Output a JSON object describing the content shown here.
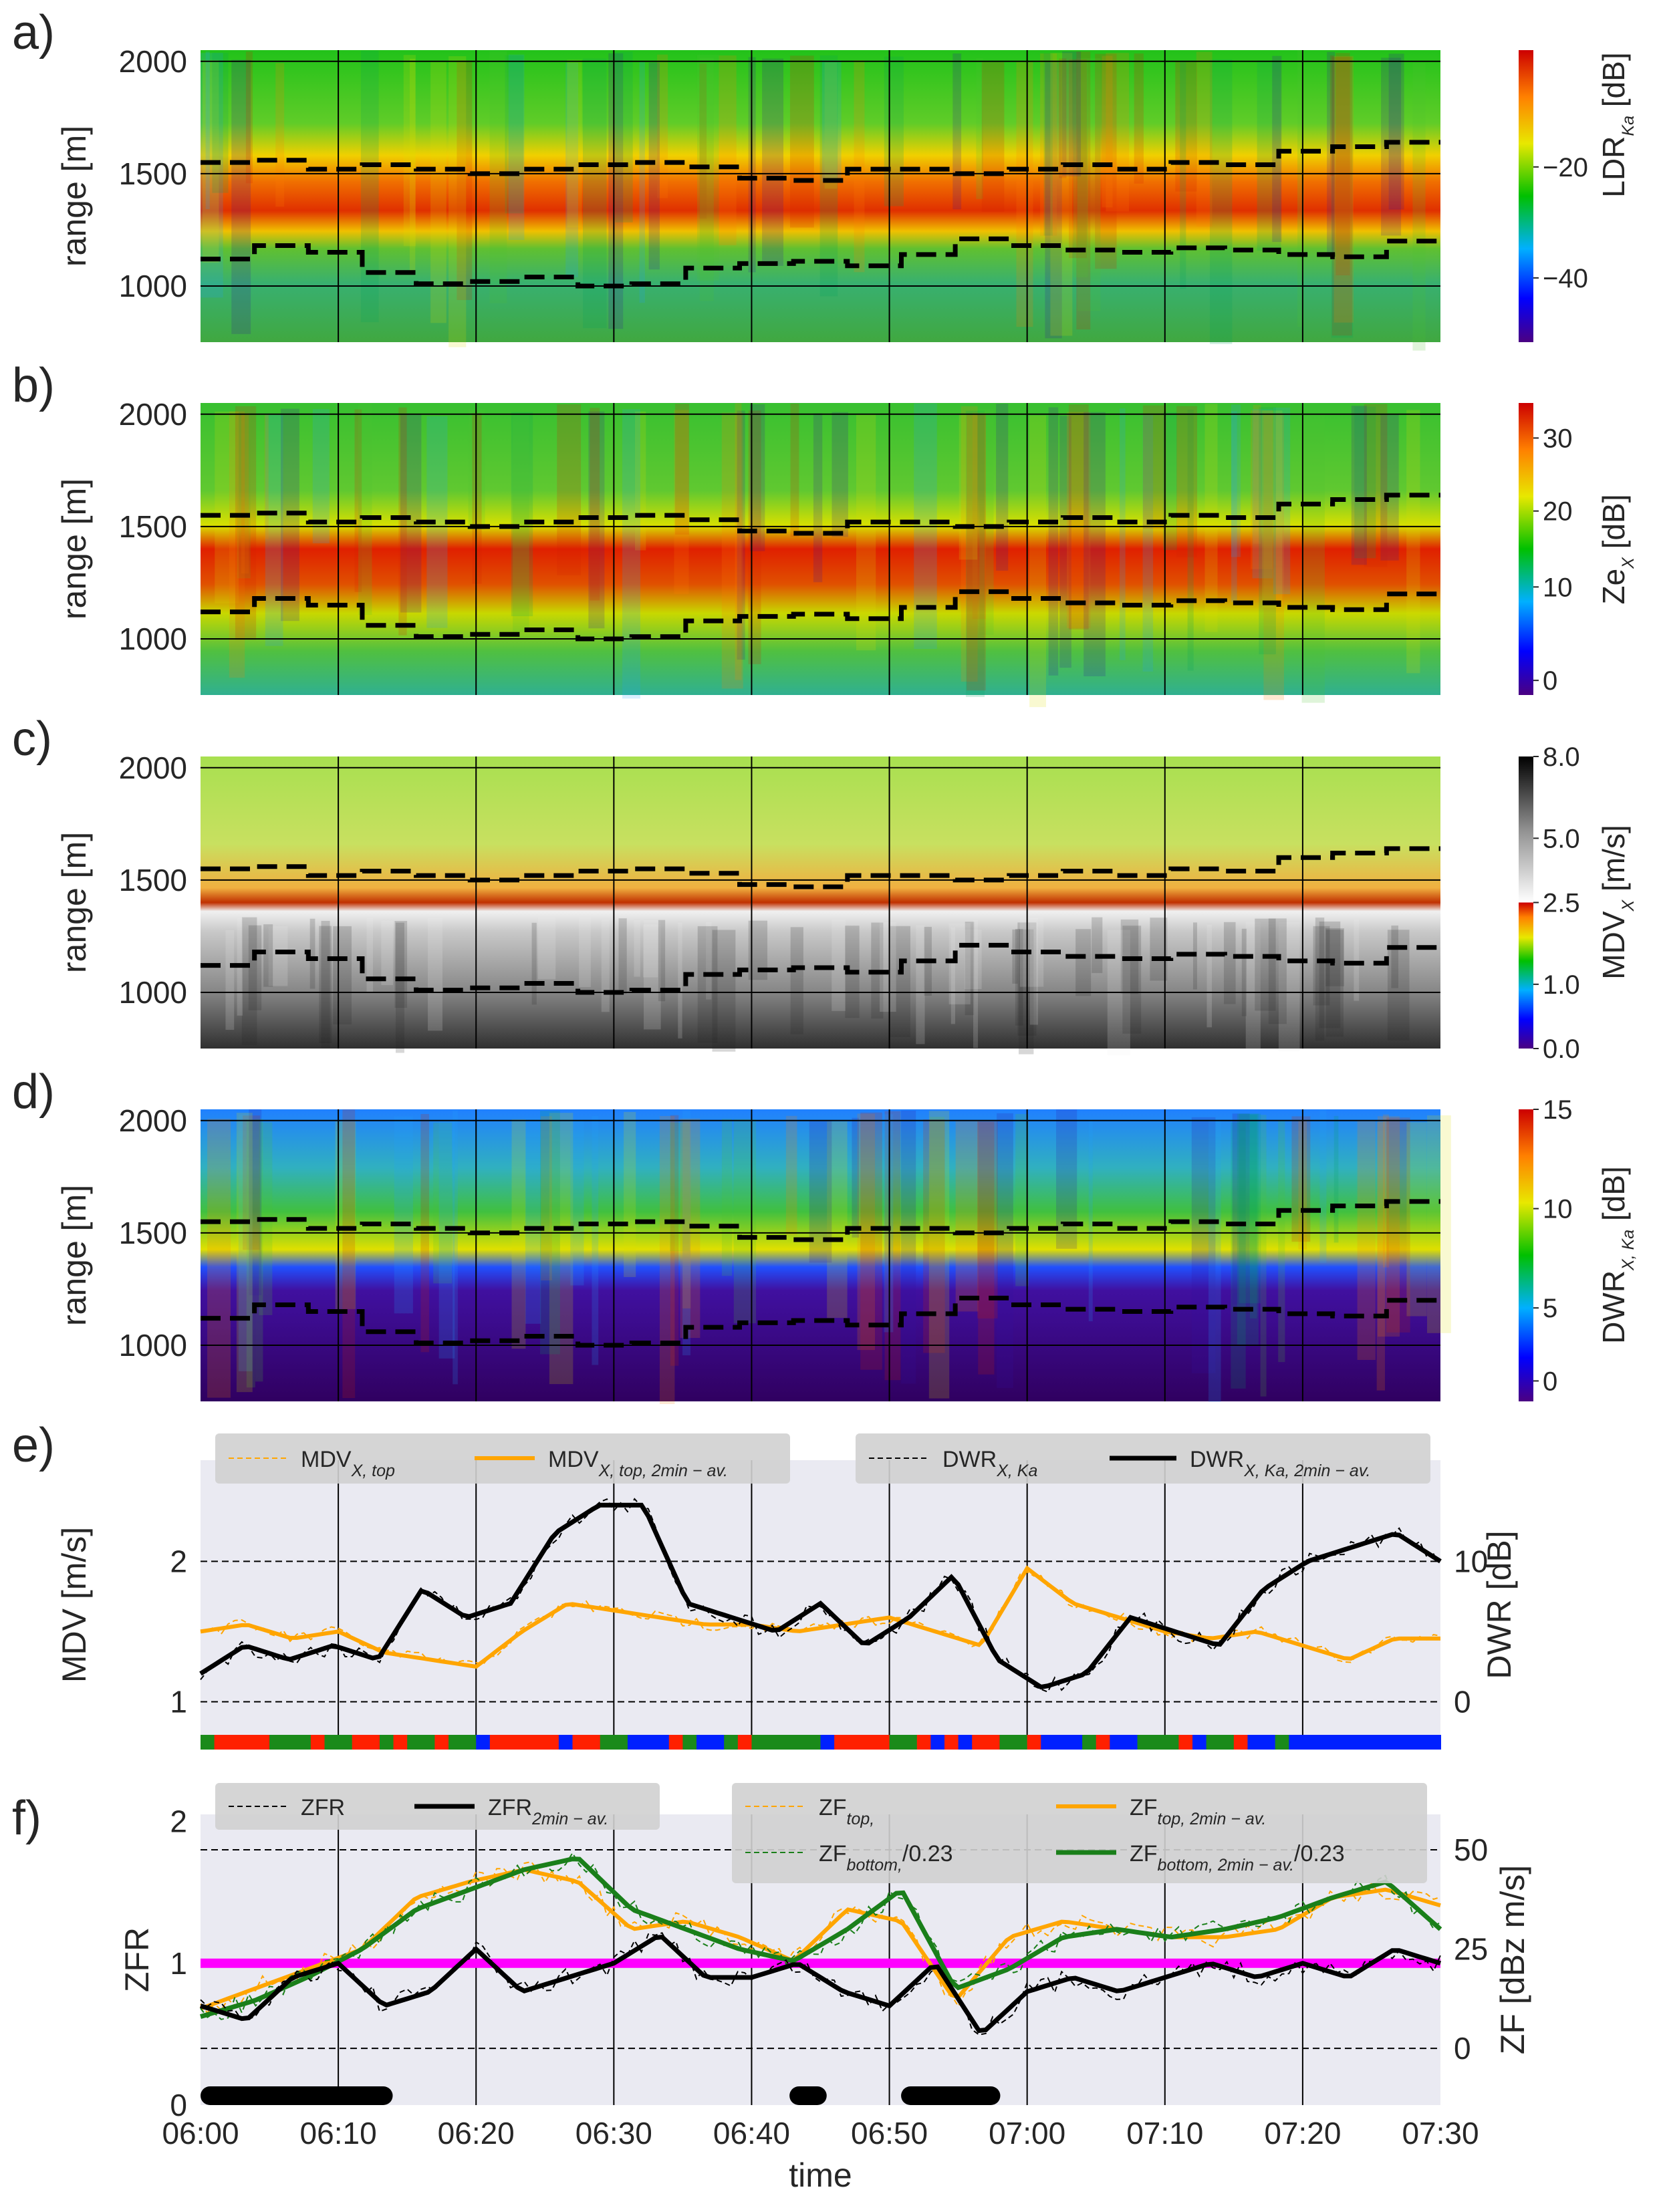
{
  "panels": {
    "a": {
      "label": "a)",
      "ylabel": "range [m]",
      "cbar_label": "LDR_Ka [dB]",
      "cbar_ticks": [
        "−20",
        "−40"
      ]
    },
    "b": {
      "label": "b)",
      "ylabel": "range [m]",
      "cbar_label": "Ze_X [dB]",
      "cbar_ticks": [
        "30",
        "20",
        "10",
        "0"
      ]
    },
    "c": {
      "label": "c)",
      "ylabel": "range [m]",
      "cbar_label": "MDV_X [m/s]",
      "cbar_ticks": [
        "8.0",
        "5.0",
        "2.5",
        "1.0",
        "0.0"
      ]
    },
    "d": {
      "label": "d)",
      "ylabel": "range [m]",
      "cbar_label": "DWR_X,Ka [dB]",
      "cbar_ticks": [
        "15",
        "10",
        "5",
        "0"
      ]
    },
    "e": {
      "label": "e)",
      "ylabel": "MDV [m/s]",
      "ylabel_right": "DWR [dB]"
    },
    "f": {
      "label": "f)",
      "ylabel": "ZFR",
      "ylabel_right": "ZF [dBz m/s]",
      "xlabel": "time"
    }
  },
  "range_ticks": [
    "2000",
    "1500",
    "1000"
  ],
  "e_left_ticks": [
    "2",
    "1"
  ],
  "e_right_ticks": [
    "10",
    "0"
  ],
  "f_left_ticks": [
    "2",
    "1.5",
    "1",
    "0.5",
    "0"
  ],
  "f_left_tick_labels": [
    "2",
    "1",
    "0"
  ],
  "f_right_ticks": [
    "50",
    "25",
    "0"
  ],
  "time_ticks": [
    "06:00",
    "06:10",
    "06:20",
    "06:30",
    "06:40",
    "06:50",
    "07:00",
    "07:10",
    "07:20",
    "07:30"
  ],
  "legend_e": {
    "mdv_top": "MDV",
    "mdv_top_sub": "X, top",
    "mdv_avg": "MDV",
    "mdv_avg_sub": "X, top, 2min − av.",
    "dwr": "DWR",
    "dwr_sub": "X, Ka",
    "dwr_avg": "DWR",
    "dwr_avg_sub": "X, Ka, 2min − av."
  },
  "legend_f": {
    "zfr": "ZFR",
    "zfr_avg": "ZFR",
    "zfr_avg_sub": "2min − av.",
    "zf_top": "ZF",
    "zf_top_sub": "top,",
    "zf_top_avg": "ZF",
    "zf_top_avg_sub": "top, 2min − av.",
    "zf_bot": "ZF",
    "zf_bot_sub": "bottom,",
    "zf_bot_suffix": "/0.23",
    "zf_bot_avg": "ZF",
    "zf_bot_avg_sub": "bottom, 2min − av.",
    "zf_bot_avg_suffix": "/0.23"
  },
  "colors": {
    "orange": "#ffa500",
    "green": "#1a7f1a",
    "black": "#000000",
    "magenta": "#ff00ff",
    "axes_bg": "#eaeaf2",
    "legend_bg": "#d0d0d0"
  },
  "chart_data": {
    "type": "heatmap",
    "time_range": [
      "06:00",
      "07:30"
    ],
    "range_ylim": [
      750,
      2050
    ],
    "melting_layer": {
      "top_m": [
        1550,
        1560,
        1520,
        1540,
        1520,
        1500,
        1520,
        1540,
        1550,
        1530,
        1480,
        1470,
        1520,
        1520,
        1500,
        1520,
        1540,
        1520,
        1550,
        1540,
        1600,
        1620,
        1640
      ],
      "bottom_m": [
        1120,
        1180,
        1150,
        1060,
        1010,
        1020,
        1040,
        1000,
        1010,
        1080,
        1100,
        1110,
        1090,
        1140,
        1210,
        1180,
        1160,
        1150,
        1170,
        1160,
        1140,
        1130,
        1200
      ]
    },
    "mdv_top_2min": [
      1.5,
      1.55,
      1.45,
      1.5,
      1.35,
      1.3,
      1.25,
      1.5,
      1.7,
      1.65,
      1.6,
      1.55,
      1.55,
      1.5,
      1.55,
      1.6,
      1.5,
      1.4,
      1.95,
      1.7,
      1.6,
      1.5,
      1.45,
      1.5,
      1.4,
      1.3,
      1.45,
      1.45
    ],
    "dwr_2min_dB": [
      2,
      4,
      3,
      4,
      3,
      8,
      6,
      7,
      12,
      14,
      14,
      7,
      6,
      5,
      7,
      4,
      6,
      9,
      3,
      1,
      2,
      6,
      5,
      4,
      8,
      10,
      11,
      12,
      10
    ],
    "zfr_2min": [
      0.7,
      0.6,
      0.9,
      1.0,
      0.7,
      0.8,
      1.1,
      0.8,
      0.9,
      1.0,
      1.2,
      0.9,
      0.9,
      1.0,
      0.8,
      0.7,
      1.0,
      0.5,
      0.8,
      0.9,
      0.8,
      0.9,
      1.0,
      0.9,
      1.0,
      0.9,
      1.1,
      1.0
    ],
    "zf_top_2min": [
      10,
      15,
      20,
      25,
      38,
      42,
      45,
      42,
      30,
      32,
      28,
      22,
      35,
      32,
      12,
      28,
      32,
      30,
      28,
      28,
      30,
      38,
      40,
      36
    ],
    "zf_bottom_2min": [
      8,
      12,
      18,
      25,
      35,
      40,
      45,
      48,
      35,
      30,
      25,
      22,
      30,
      40,
      15,
      20,
      28,
      30,
      28,
      30,
      33,
      38,
      42,
      30
    ],
    "zfr_reference": 1.0
  }
}
